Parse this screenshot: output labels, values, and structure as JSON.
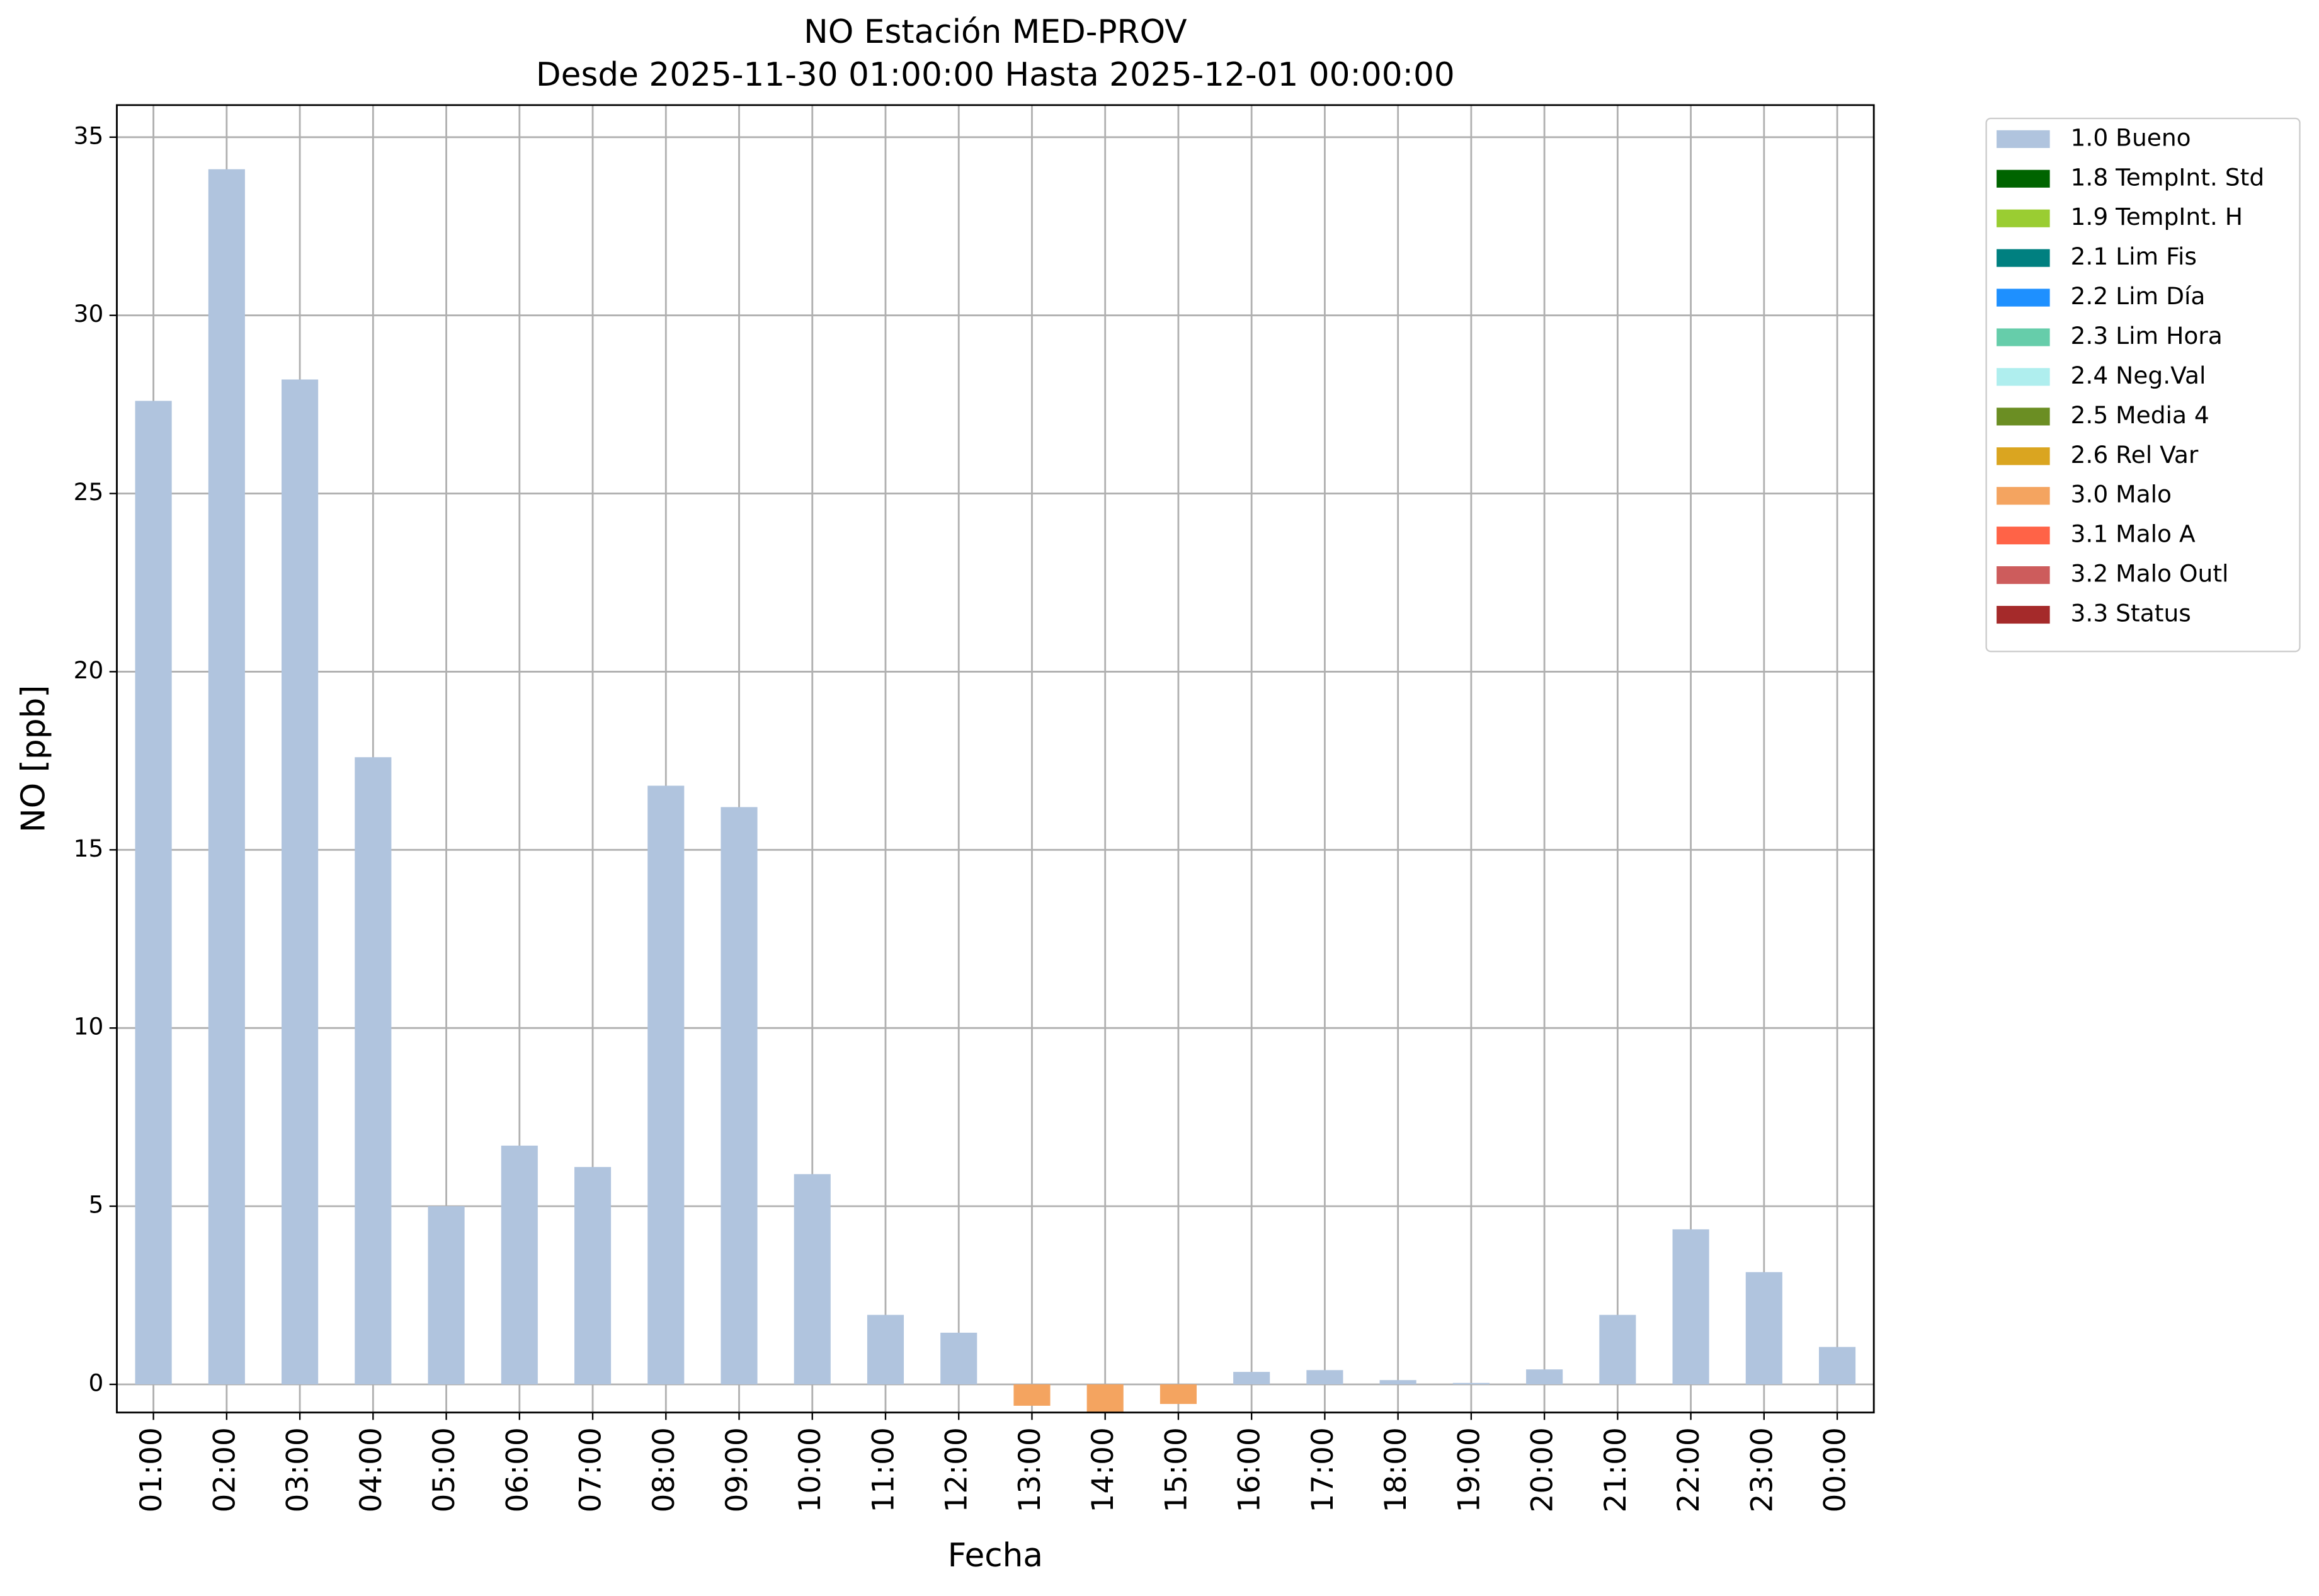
{
  "chart_data": {
    "type": "bar",
    "title": "NO Estación MED-PROV",
    "subtitle": "Desde 2025-11-30 01:00:00 Hasta 2025-12-01 00:00:00",
    "x_label": "Fecha",
    "y_label": "NO [ppb]",
    "categories": [
      "01:00",
      "02:00",
      "03:00",
      "04:00",
      "05:00",
      "06:00",
      "07:00",
      "08:00",
      "09:00",
      "10:00",
      "11:00",
      "12:00",
      "13:00",
      "14:00",
      "15:00",
      "16:00",
      "17:00",
      "18:00",
      "19:00",
      "20:00",
      "21:00",
      "22:00",
      "23:00",
      "00:00"
    ],
    "series": [
      {
        "name": "1.0 Bueno",
        "color": "#b0c4de",
        "values": [
          27.6,
          34.1,
          28.2,
          17.6,
          5.0,
          6.7,
          6.1,
          16.8,
          16.2,
          5.9,
          1.95,
          1.45,
          null,
          null,
          null,
          0.35,
          0.4,
          0.12,
          0.04,
          0.42,
          1.95,
          4.35,
          3.15,
          1.05
        ]
      },
      {
        "name": "1.8 TempInt. Std",
        "color": "#006400",
        "values": [
          null,
          null,
          null,
          null,
          null,
          null,
          null,
          null,
          null,
          null,
          null,
          null,
          null,
          null,
          null,
          null,
          null,
          null,
          null,
          null,
          null,
          null,
          null,
          null
        ]
      },
      {
        "name": "1.9 TempInt. H",
        "color": "#9acd32",
        "values": [
          null,
          null,
          null,
          null,
          null,
          null,
          null,
          null,
          null,
          null,
          null,
          null,
          null,
          null,
          null,
          null,
          null,
          null,
          null,
          null,
          null,
          null,
          null,
          null
        ]
      },
      {
        "name": "2.1 Lim Fis",
        "color": "#008080",
        "values": [
          null,
          null,
          null,
          null,
          null,
          null,
          null,
          null,
          null,
          null,
          null,
          null,
          null,
          null,
          null,
          null,
          null,
          null,
          null,
          null,
          null,
          null,
          null,
          null
        ]
      },
      {
        "name": "2.2 Lim Día",
        "color": "#1e90ff",
        "values": [
          null,
          null,
          null,
          null,
          null,
          null,
          null,
          null,
          null,
          null,
          null,
          null,
          null,
          null,
          null,
          null,
          null,
          null,
          null,
          null,
          null,
          null,
          null,
          null
        ]
      },
      {
        "name": "2.3 Lim Hora",
        "color": "#66cdaa",
        "values": [
          null,
          null,
          null,
          null,
          null,
          null,
          null,
          null,
          null,
          null,
          null,
          null,
          null,
          null,
          null,
          null,
          null,
          null,
          null,
          null,
          null,
          null,
          null,
          null
        ]
      },
      {
        "name": "2.4 Neg.Val",
        "color": "#afeeee",
        "values": [
          null,
          null,
          null,
          null,
          null,
          null,
          null,
          null,
          null,
          null,
          null,
          null,
          null,
          null,
          null,
          null,
          null,
          null,
          null,
          null,
          null,
          null,
          null,
          null
        ]
      },
      {
        "name": "2.5 Media 4",
        "color": "#6b8e23",
        "values": [
          null,
          null,
          null,
          null,
          null,
          null,
          null,
          null,
          null,
          null,
          null,
          null,
          null,
          null,
          null,
          null,
          null,
          null,
          null,
          null,
          null,
          null,
          null,
          null
        ]
      },
      {
        "name": "2.6 Rel Var",
        "color": "#daa520",
        "values": [
          null,
          null,
          null,
          null,
          null,
          null,
          null,
          null,
          null,
          null,
          null,
          null,
          null,
          null,
          null,
          null,
          null,
          null,
          null,
          null,
          null,
          null,
          null,
          null
        ]
      },
      {
        "name": "3.0 Malo",
        "color": "#f4a460",
        "values": [
          null,
          null,
          null,
          null,
          null,
          null,
          null,
          null,
          null,
          null,
          null,
          null,
          -0.6,
          -0.8,
          -0.55,
          null,
          null,
          null,
          null,
          null,
          null,
          null,
          null,
          null
        ]
      },
      {
        "name": "3.1 Malo A",
        "color": "#ff6347",
        "values": [
          null,
          null,
          null,
          null,
          null,
          null,
          null,
          null,
          null,
          null,
          null,
          null,
          null,
          null,
          null,
          null,
          null,
          null,
          null,
          null,
          null,
          null,
          null,
          null
        ]
      },
      {
        "name": "3.2 Malo Outl",
        "color": "#cd5c5c",
        "values": [
          null,
          null,
          null,
          null,
          null,
          null,
          null,
          null,
          null,
          null,
          null,
          null,
          null,
          null,
          null,
          null,
          null,
          null,
          null,
          null,
          null,
          null,
          null,
          null
        ]
      },
      {
        "name": "3.3 Status",
        "color": "#a52a2a",
        "values": [
          null,
          null,
          null,
          null,
          null,
          null,
          null,
          null,
          null,
          null,
          null,
          null,
          null,
          null,
          null,
          null,
          null,
          null,
          null,
          null,
          null,
          null,
          null,
          null
        ]
      }
    ],
    "ylim": [
      -0.79,
      35.9
    ],
    "yticks": [
      0,
      5,
      10,
      15,
      20,
      25,
      30,
      35
    ],
    "grid": true,
    "legend": "outside-right"
  }
}
